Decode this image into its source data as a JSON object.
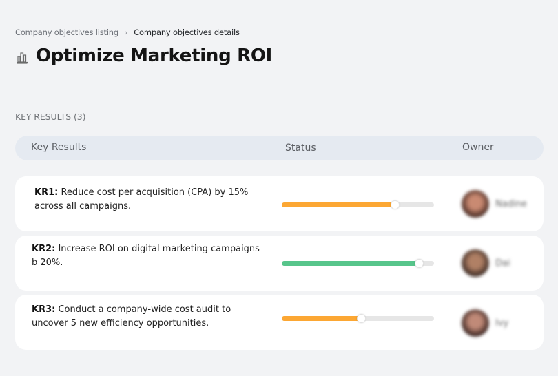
{
  "breadcrumb": {
    "parent": "Company objectives listing",
    "separator": "›",
    "current": "Company objectives details"
  },
  "header": {
    "icon": "buildings-chart-icon",
    "title": "Optimize Marketing ROI"
  },
  "key_results_section": {
    "label": "KEY RESULTS (3)",
    "columns": {
      "key_results": "Key Results",
      "status": "Status",
      "owner": "Owner"
    },
    "rows": [
      {
        "id": "KR1:",
        "text": " Reduce cost per acquisition (CPA) by 15% across all campaigns.",
        "progress_percent": 74,
        "progress_color": "#fca733",
        "owner_name": "Nadine",
        "owner_avatar_colors": [
          "#4a2c24",
          "#c98a72"
        ]
      },
      {
        "id": "KR2:",
        "text": " Increase ROI on digital marketing campaigns b 20%.",
        "progress_percent": 90,
        "progress_color": "#57c58b",
        "owner_name": "Dai",
        "owner_avatar_colors": [
          "#3e2c25",
          "#b08065"
        ]
      },
      {
        "id": "KR3:",
        "text": " Conduct a company-wide cost audit to uncover 5 new efficiency opportunities.",
        "progress_percent": 52,
        "progress_color": "#fca733",
        "owner_name": "Ivy",
        "owner_avatar_colors": [
          "#3a2420",
          "#c08a78"
        ]
      }
    ]
  },
  "colors": {
    "background": "#f2f3f5",
    "header_pill": "#e5eaf1",
    "card": "#ffffff",
    "track": "#e6e6e6",
    "orange": "#fca733",
    "green": "#57c58b"
  }
}
